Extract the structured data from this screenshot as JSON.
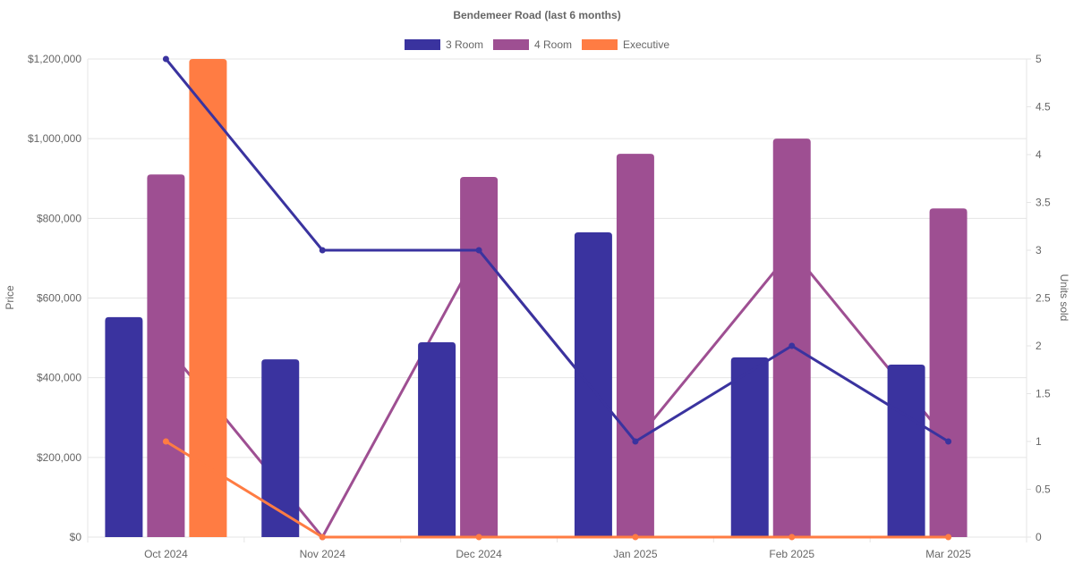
{
  "chart_data": {
    "type": "bar",
    "title": "Bendemeer Road (last 6 months)",
    "categories": [
      "Oct 2024",
      "Nov 2024",
      "Dec 2024",
      "Jan 2025",
      "Feb 2025",
      "Mar 2025"
    ],
    "ylabel": "Price",
    "y2label": "Units sold",
    "ylim": [
      0,
      1200000
    ],
    "y2lim": [
      0,
      5
    ],
    "yticks": [
      "$0",
      "$200,000",
      "$400,000",
      "$600,000",
      "$800,000",
      "$1,000,000",
      "$1,200,000"
    ],
    "y2ticks": [
      "0",
      "0.5",
      "1",
      "1.5",
      "2",
      "2.5",
      "3",
      "3.5",
      "4",
      "4.5",
      "5"
    ],
    "legend_position": "top",
    "grid": true,
    "series": [
      {
        "name": "3 Room",
        "color": "#3a339f",
        "type": "bar",
        "axis": "price",
        "values": [
          552000,
          446000,
          489000,
          765000,
          451000,
          433000
        ]
      },
      {
        "name": "4 Room",
        "color": "#9e4f92",
        "type": "bar",
        "axis": "price",
        "values": [
          910000,
          null,
          904000,
          962000,
          1000000,
          825000
        ]
      },
      {
        "name": "Executive",
        "color": "#ff7c43",
        "type": "bar",
        "axis": "price",
        "values": [
          1200000,
          null,
          null,
          null,
          null,
          null
        ]
      }
    ],
    "line_series": [
      {
        "name": "3 Room",
        "color": "#3a339f",
        "type": "line",
        "axis": "units",
        "values": [
          5,
          3,
          3,
          1,
          2,
          1
        ]
      },
      {
        "name": "4 Room",
        "color": "#9e4f92",
        "type": "line",
        "axis": "units",
        "values": [
          2,
          0,
          3,
          1,
          3,
          1
        ]
      },
      {
        "name": "Executive",
        "color": "#ff7c43",
        "type": "line",
        "axis": "units",
        "values": [
          1,
          0,
          0,
          0,
          0,
          0
        ]
      }
    ]
  }
}
